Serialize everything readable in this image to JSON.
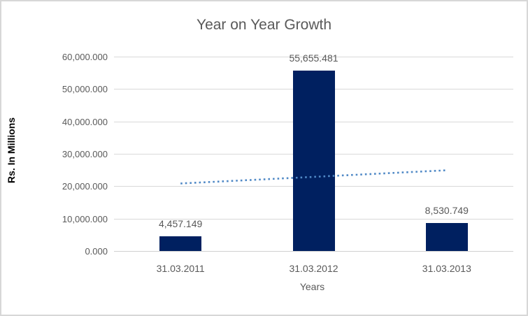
{
  "chart_data": {
    "type": "bar",
    "title": "Year on Year Growth",
    "xlabel": "Years",
    "ylabel": "Rs. In Millions",
    "categories": [
      "31.03.2011",
      "31.03.2012",
      "31.03.2013"
    ],
    "values": [
      4457.149,
      55655.481,
      8530.749
    ],
    "data_labels": [
      "4,457.149",
      "55,655.481",
      "8,530.749"
    ],
    "ylim": [
      0,
      60000
    ],
    "ytick_step": 10000,
    "ytick_labels": [
      "0.000",
      "10,000.000",
      "20,000.000",
      "30,000.000",
      "40,000.000",
      "50,000.000",
      "60,000.000"
    ],
    "grid": true,
    "legend": "none",
    "trendline": {
      "type": "linear",
      "style": "dotted"
    }
  },
  "colors": {
    "bar_fill": "#002060",
    "trendline": "#5089c6",
    "gridline": "#d9d9d9",
    "axis_line": "#d0d0d0",
    "text_gray": "#595959",
    "y_axis_title": "#000000",
    "background": "#ffffff",
    "border": "#d7d7d7"
  }
}
